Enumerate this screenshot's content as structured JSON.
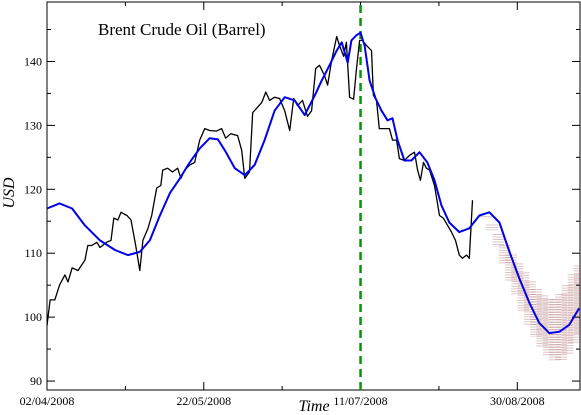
{
  "chart_data": {
    "type": "line",
    "title": "Brent Crude Oil (Barrel)",
    "x_label": "Time",
    "y_label": "USD",
    "xlim": [
      0,
      170
    ],
    "ylim": [
      88.6,
      149.3
    ],
    "xticks": [
      {
        "value": 0,
        "label": "02/04/2008"
      },
      {
        "value": 50,
        "label": "22/05/2008"
      },
      {
        "value": 100,
        "label": "11/07/2008"
      },
      {
        "value": 150,
        "label": "30/08/2008"
      }
    ],
    "xminor_ticks": [
      25,
      75,
      125
    ],
    "yticks": [
      90,
      100,
      110,
      120,
      130,
      140
    ],
    "yminor_ticks": [
      95,
      105,
      115,
      125,
      135,
      145
    ],
    "series": [
      {
        "color": "#000000",
        "x": [
          0,
          1,
          2.5,
          4,
          5.7,
          6.7,
          8,
          9.9,
          12.1,
          13,
          14.3,
          15.9,
          16.9,
          19,
          20.4,
          21.3,
          22.6,
          23.6,
          25.5,
          26.8,
          28.3,
          29.6,
          30.6,
          32.2,
          33.4,
          35,
          36.3,
          36.9,
          38.5,
          40,
          41.7,
          42.7,
          43.9,
          45.5,
          47.1,
          48.7,
          50.3,
          51.9,
          54.1,
          55.7,
          57,
          58.6,
          60.8,
          62.1,
          63.1,
          64.6,
          65.6,
          66.9,
          68.5,
          69.8,
          71,
          72.6,
          74.2,
          75.8,
          77.4,
          78.7,
          79.9,
          81.5,
          83.1,
          84.4,
          85.7,
          86.9,
          88.5,
          89.5,
          90.8,
          92.4,
          93.3,
          94.6,
          95.5,
          96.5,
          97.8,
          98.7,
          99.7,
          100.6,
          101.9,
          103.5,
          104.1,
          105.1,
          106,
          107.6,
          109.2,
          110.2,
          111.5,
          112.4,
          114,
          115.6,
          117.2,
          118.2,
          119.1,
          120.1,
          121,
          122,
          123.6,
          125.2,
          126.4,
          127.7,
          129,
          130.3,
          131.5,
          132.5,
          133.8,
          134.7,
          135.7
        ],
        "values": [
          98.7,
          102.7,
          102.7,
          105,
          106.6,
          105.5,
          107.7,
          107.3,
          108.9,
          111.2,
          111.2,
          111.7,
          110.9,
          111.7,
          112,
          115.5,
          115.2,
          116.4,
          115.9,
          115.2,
          111.2,
          107.3,
          112,
          113.9,
          115.9,
          120.2,
          120.6,
          123,
          123.3,
          122.7,
          123.3,
          121.7,
          123,
          123.8,
          124.2,
          127.7,
          129.5,
          129.2,
          129.1,
          129.5,
          128,
          128.7,
          128.4,
          126.1,
          121.7,
          122.7,
          132,
          132.7,
          133.6,
          135.2,
          133.9,
          134.4,
          134.2,
          132.3,
          129.2,
          134.2,
          133.1,
          133.9,
          131.4,
          132.3,
          138.9,
          139.4,
          137.8,
          136.3,
          140.2,
          143.9,
          142.5,
          140.8,
          143,
          134.4,
          134.1,
          138.9,
          143.3,
          143.3,
          142.5,
          141.7,
          134.7,
          133.9,
          129.5,
          129.5,
          129.5,
          127.7,
          127.7,
          124.8,
          124.5,
          125.3,
          125.8,
          123,
          121.4,
          124.2,
          123.3,
          123,
          120.6,
          115.9,
          115.5,
          114.4,
          113.3,
          112,
          109.7,
          109.2,
          109.7,
          109.2,
          118.3
        ]
      },
      {
        "color": "#0000ee",
        "x": [
          0,
          4,
          8,
          12,
          16.9,
          21.7,
          25.8,
          29.6,
          32.8,
          36,
          39.2,
          42.4,
          45.5,
          48.7,
          51.9,
          54.5,
          56.7,
          59.9,
          63.1,
          66.2,
          69.4,
          72.6,
          75.8,
          79,
          82.2,
          85.4,
          87.6,
          90.1,
          92.4,
          94,
          95.9,
          97.1,
          98.7,
          100,
          101.3,
          102.9,
          104.8,
          106.7,
          108.6,
          110.2,
          111.8,
          114,
          116.2,
          118.8,
          121.3,
          123.6,
          125.8,
          128.3,
          131.5,
          134.7,
          137.9,
          141.1,
          144.3,
          147.5,
          150.6,
          153.8,
          157,
          160.2,
          163.4,
          166.6,
          169.7
        ],
        "values": [
          117,
          117.8,
          117,
          114.4,
          112,
          110.5,
          109.7,
          110.2,
          112,
          115.9,
          119.4,
          121.7,
          124.2,
          126.4,
          128,
          127.8,
          126.1,
          123.3,
          122.2,
          123.8,
          127.7,
          132.3,
          134.4,
          133.9,
          131.6,
          134.7,
          137,
          139.4,
          141.7,
          143,
          139.8,
          143.3,
          144.1,
          144.5,
          142.5,
          137,
          134.2,
          132.3,
          130.8,
          131.1,
          127.7,
          124.5,
          124.5,
          125.8,
          124.2,
          121.4,
          117.5,
          114.8,
          113.3,
          113.9,
          115.9,
          116.4,
          114.8,
          110.2,
          106.1,
          102.3,
          99.1,
          97.5,
          97.7,
          98.8,
          101.4
        ]
      }
    ],
    "band": {
      "color": "#a05a5a",
      "x": [
        138,
        140,
        142,
        144,
        146,
        148,
        150,
        152,
        154,
        156,
        158,
        160,
        162,
        164,
        166,
        168,
        170
      ],
      "upper": [
        116,
        115.8,
        114.5,
        113,
        111.3,
        109.8,
        108.4,
        107,
        105.6,
        104.4,
        103.4,
        102.8,
        102.8,
        103.6,
        105,
        106.7,
        108.1
      ],
      "lower": [
        116,
        115.4,
        113.6,
        111,
        108.3,
        105.7,
        103.4,
        101,
        98.8,
        96.9,
        95.2,
        93.8,
        93.2,
        93.3,
        94.3,
        95.8,
        97.2
      ]
    },
    "vline": {
      "x": 100,
      "color": "#009a00"
    }
  }
}
